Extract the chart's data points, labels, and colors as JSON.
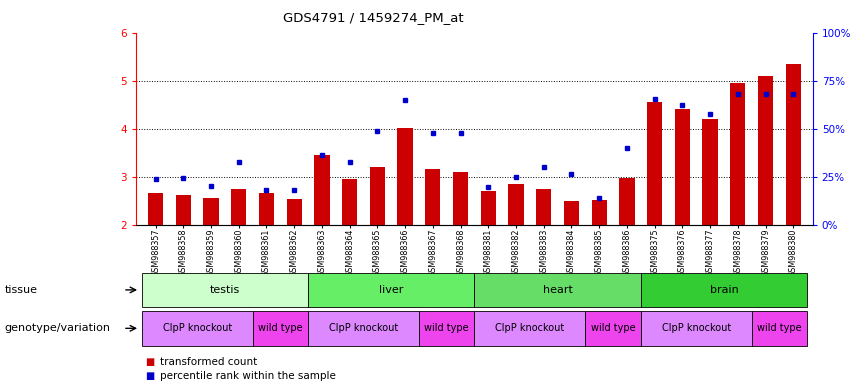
{
  "title": "GDS4791 / 1459274_PM_at",
  "samples": [
    "GSM988357",
    "GSM988358",
    "GSM988359",
    "GSM988360",
    "GSM988361",
    "GSM988362",
    "GSM988363",
    "GSM988364",
    "GSM988365",
    "GSM988366",
    "GSM988367",
    "GSM988368",
    "GSM988381",
    "GSM988382",
    "GSM988383",
    "GSM988384",
    "GSM988385",
    "GSM988386",
    "GSM988375",
    "GSM988376",
    "GSM988377",
    "GSM988378",
    "GSM988379",
    "GSM988380"
  ],
  "bar_values": [
    2.65,
    2.62,
    2.55,
    2.75,
    2.65,
    2.53,
    3.45,
    2.95,
    3.2,
    4.02,
    3.15,
    3.1,
    2.7,
    2.85,
    2.75,
    2.5,
    2.52,
    2.98,
    4.55,
    4.4,
    4.2,
    4.95,
    5.1,
    5.35
  ],
  "dot_values": [
    2.95,
    2.98,
    2.8,
    3.3,
    2.72,
    2.72,
    3.45,
    3.3,
    3.95,
    4.6,
    3.9,
    3.9,
    2.78,
    3.0,
    3.2,
    3.05,
    2.55,
    3.6,
    4.62,
    4.5,
    4.3,
    4.72,
    4.72,
    4.72
  ],
  "ylim_left": [
    2,
    6
  ],
  "yticks_left": [
    2,
    3,
    4,
    5,
    6
  ],
  "ylim_right": [
    0,
    100
  ],
  "yticks_right": [
    0,
    25,
    50,
    75,
    100
  ],
  "bar_color": "#cc0000",
  "dot_color": "#0000cc",
  "plot_bg": "#ffffff",
  "fig_bg": "#ffffff",
  "tissue_groups": [
    {
      "label": "testis",
      "start": 0,
      "end": 6,
      "color": "#ccffcc"
    },
    {
      "label": "liver",
      "start": 6,
      "end": 12,
      "color": "#66ee66"
    },
    {
      "label": "heart",
      "start": 12,
      "end": 18,
      "color": "#66dd66"
    },
    {
      "label": "brain",
      "start": 18,
      "end": 24,
      "color": "#33cc33"
    }
  ],
  "genotype_groups": [
    {
      "label": "ClpP knockout",
      "start": 0,
      "end": 4,
      "color": "#dd88ff"
    },
    {
      "label": "wild type",
      "start": 4,
      "end": 6,
      "color": "#ee44ee"
    },
    {
      "label": "ClpP knockout",
      "start": 6,
      "end": 10,
      "color": "#dd88ff"
    },
    {
      "label": "wild type",
      "start": 10,
      "end": 12,
      "color": "#ee44ee"
    },
    {
      "label": "ClpP knockout",
      "start": 12,
      "end": 16,
      "color": "#dd88ff"
    },
    {
      "label": "wild type",
      "start": 16,
      "end": 18,
      "color": "#ee44ee"
    },
    {
      "label": "ClpP knockout",
      "start": 18,
      "end": 22,
      "color": "#dd88ff"
    },
    {
      "label": "wild type",
      "start": 22,
      "end": 24,
      "color": "#ee44ee"
    }
  ],
  "tissue_row_label": "tissue",
  "genotype_row_label": "genotype/variation",
  "legend_bar": "transformed count",
  "legend_dot": "percentile rank within the sample",
  "gridlines": [
    3,
    4,
    5
  ]
}
